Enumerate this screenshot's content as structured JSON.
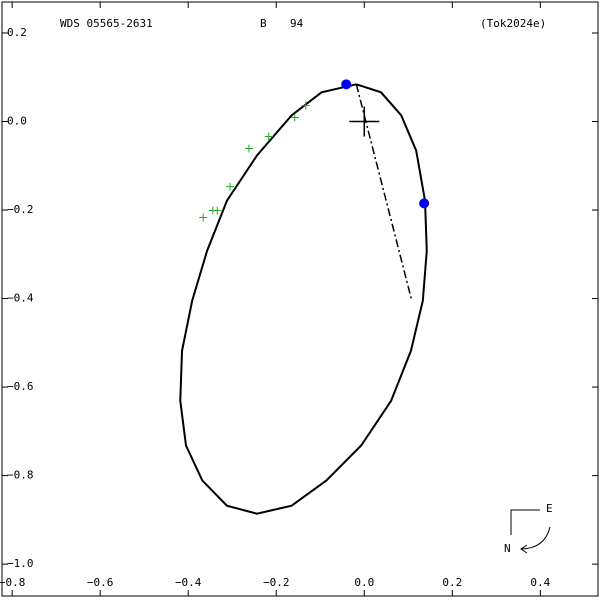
{
  "chart_data": {
    "type": "orbit",
    "title": "WDS 05565-2631",
    "component": "B",
    "number": "94",
    "reference": "(Tok2024e)",
    "xlim": [
      -0.823,
      0.531
    ],
    "ylim": [
      -1.072,
      0.27
    ],
    "xticks": [
      {
        "value": -0.8,
        "label": "−0.8"
      },
      {
        "value": -0.6,
        "label": "−0.6"
      },
      {
        "value": -0.4,
        "label": "−0.4"
      },
      {
        "value": -0.2,
        "label": "−0.2"
      },
      {
        "value": 0,
        "label": "0.0"
      },
      0.2,
      0.4
    ],
    "yticks": [
      0.2,
      {
        "value": 0,
        "label": "0.0"
      },
      {
        "value": -0.2,
        "label": "−0.2"
      },
      {
        "value": -0.4,
        "label": "−0.4"
      },
      {
        "value": -0.6,
        "label": "−0.6"
      },
      {
        "value": -0.8,
        "label": "−0.8"
      },
      {
        "value": -1.0,
        "label": "−1.0"
      }
    ],
    "orbit": {
      "color": "#000000",
      "x": [
        -0.018,
        0.038,
        0.084,
        0.118,
        0.138,
        0.142,
        0.133,
        0.106,
        0.061,
        -0.007,
        -0.086,
        -0.165,
        -0.244,
        -0.312,
        -0.368,
        -0.405,
        -0.418,
        -0.414,
        -0.391,
        -0.357,
        -0.312,
        -0.244,
        -0.165,
        -0.097,
        -0.018
      ],
      "y": [
        0.084,
        0.066,
        0.014,
        -0.066,
        -0.179,
        -0.292,
        -0.405,
        -0.518,
        -0.631,
        -0.732,
        -0.811,
        -0.868,
        -0.886,
        -0.868,
        -0.811,
        -0.732,
        -0.631,
        -0.518,
        -0.405,
        -0.292,
        -0.179,
        -0.077,
        0.014,
        0.066,
        0.084
      ]
    },
    "node_line": {
      "color": "#000000",
      "x": [
        -0.018,
        0.108
      ],
      "y": [
        0.084,
        -0.405
      ]
    },
    "observations": {
      "color": "#22aa22",
      "x": [
        -0.366,
        -0.344,
        -0.334,
        -0.305,
        -0.262,
        -0.217,
        -0.158,
        -0.133
      ],
      "y": [
        -0.217,
        -0.201,
        -0.201,
        -0.147,
        -0.061,
        -0.034,
        0.009,
        0.036
      ]
    },
    "positions": {
      "color": "#0000ee",
      "x": [
        -0.041,
        0.136
      ],
      "y": [
        0.084,
        -0.185
      ]
    },
    "primary": {
      "x": 0,
      "y": 0
    },
    "compass": {
      "east": "E",
      "north": "N"
    }
  }
}
